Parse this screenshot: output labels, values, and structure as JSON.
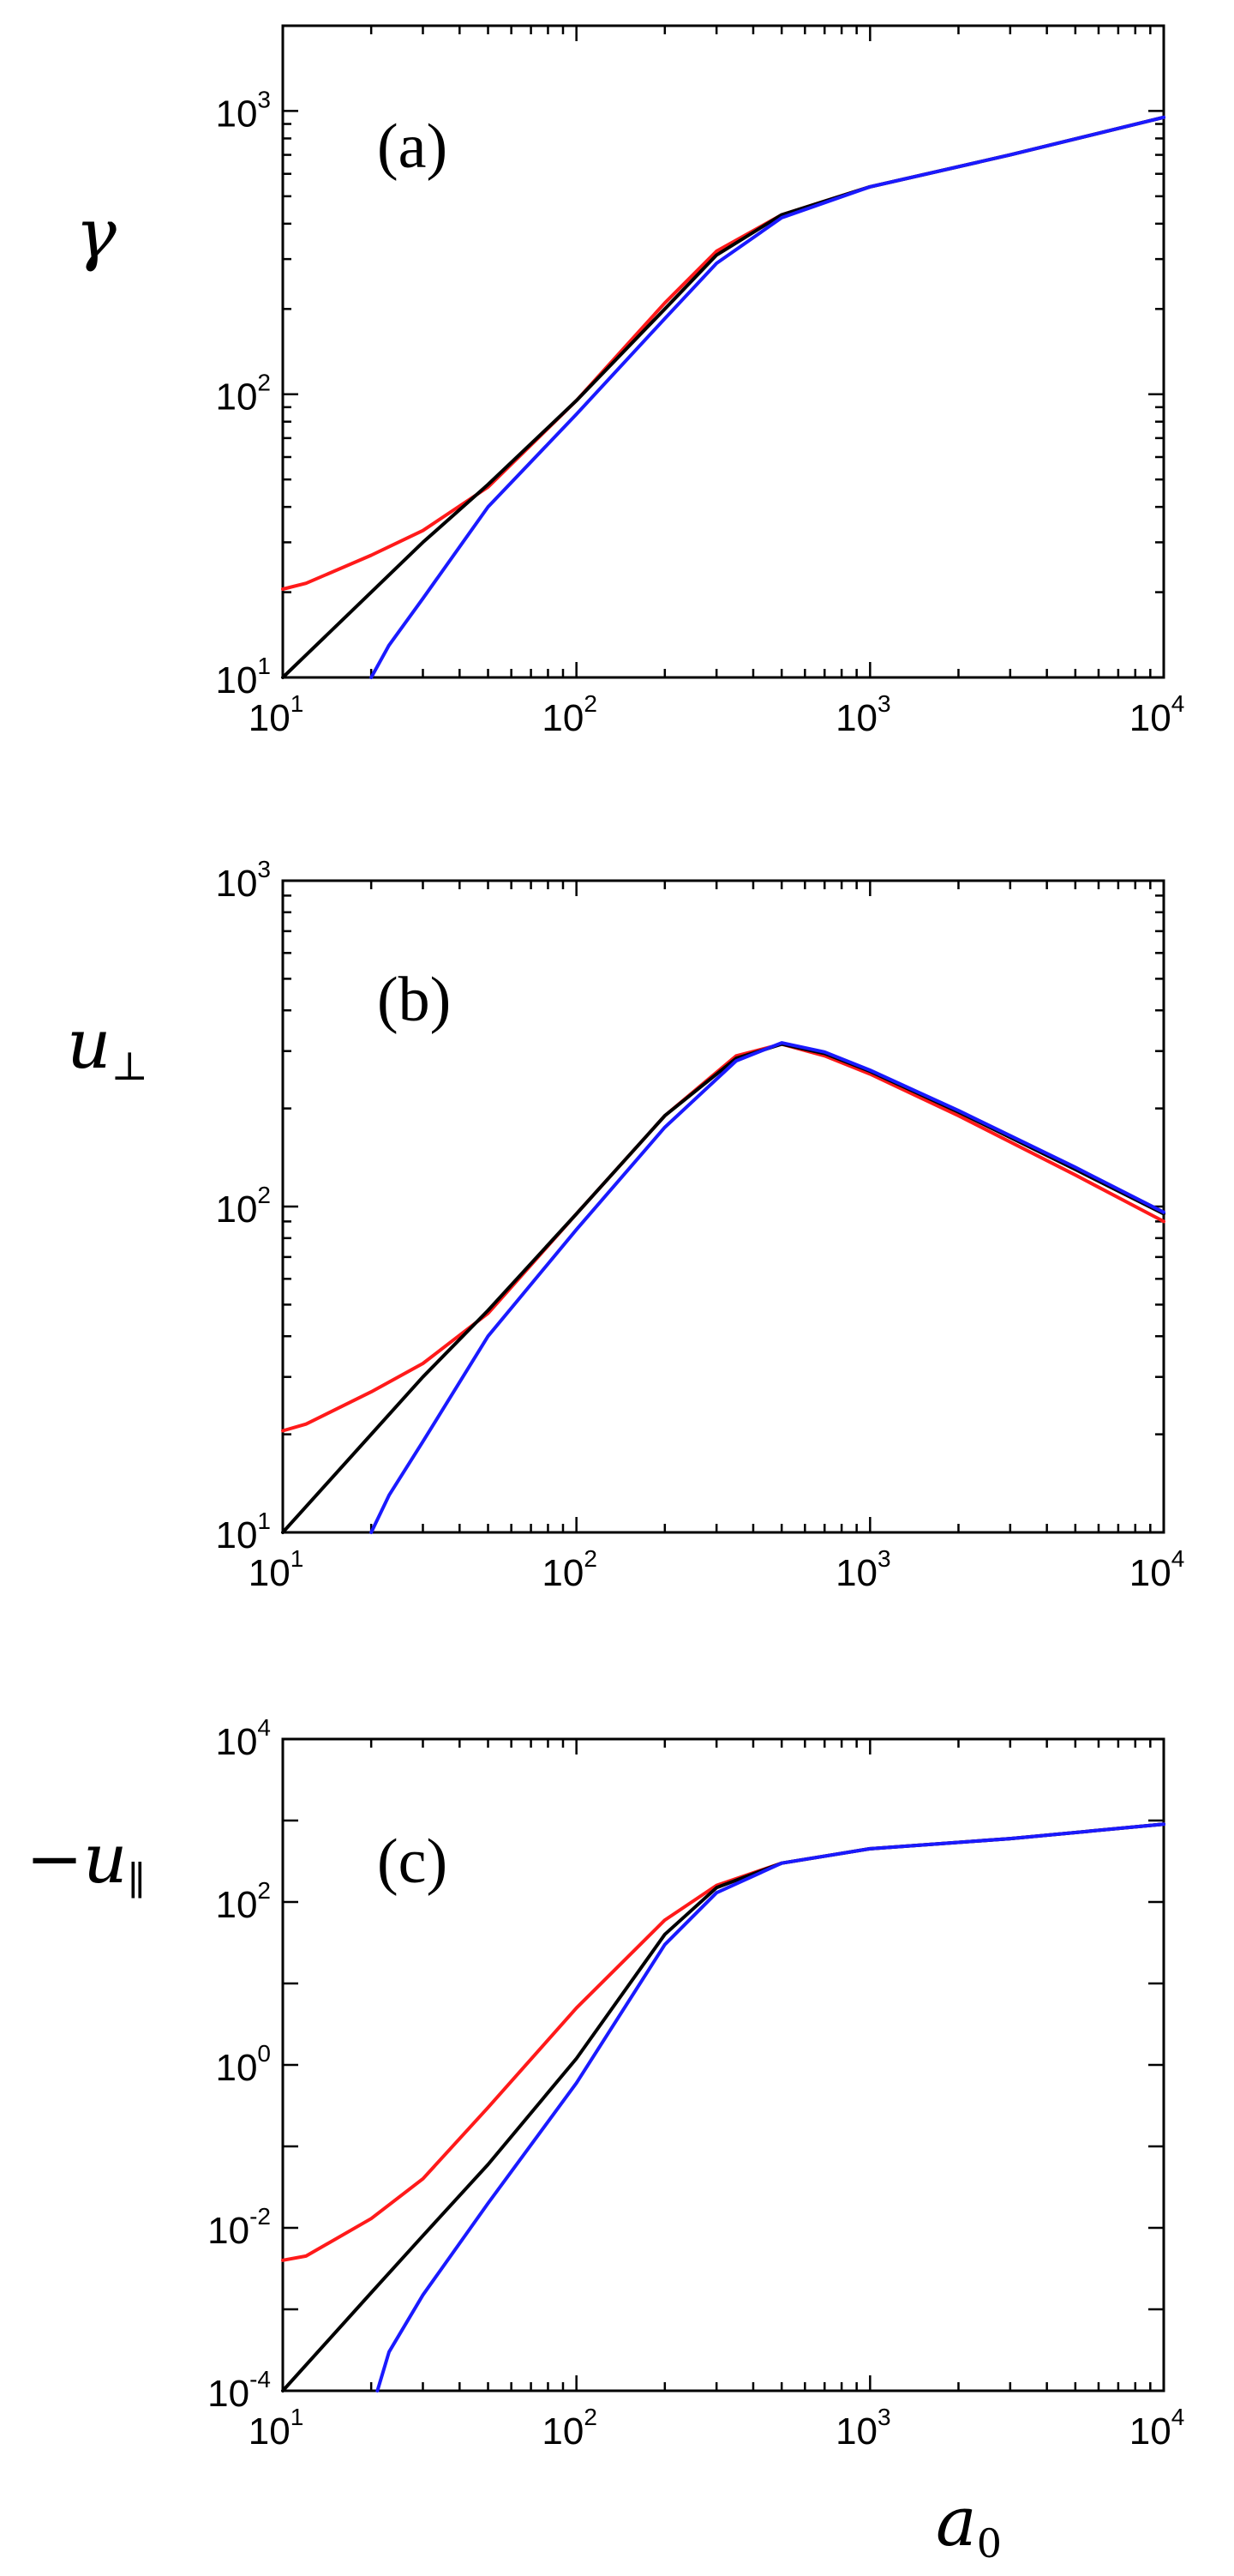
{
  "colors": {
    "red": "#ff1a1a",
    "black": "#000000",
    "blue": "#1a1aff"
  },
  "chart_data": [
    {
      "type": "line",
      "panel_label": "(a)",
      "ylabel": "γ",
      "xlabel": "",
      "xscale": "log",
      "yscale": "log",
      "xlim": [
        10,
        10000
      ],
      "ylim": [
        10,
        2000
      ],
      "xticks": [
        {
          "base": "10",
          "exp": "1"
        },
        {
          "base": "10",
          "exp": "2"
        },
        {
          "base": "10",
          "exp": "3"
        },
        {
          "base": "10",
          "exp": "4"
        }
      ],
      "yticks": [
        {
          "value": 10,
          "base": "10",
          "exp": "1"
        },
        {
          "value": 100,
          "base": "10",
          "exp": "2"
        },
        {
          "value": 1000,
          "base": "10",
          "exp": "3"
        }
      ],
      "grid": false,
      "series": [
        {
          "color": "red",
          "x": [
            10,
            12,
            20,
            30,
            50,
            100,
            200,
            300,
            500,
            1000,
            3000,
            10000
          ],
          "y": [
            20.5,
            21.5,
            27,
            33,
            47,
            95,
            210,
            320,
            430,
            540,
            700,
            950
          ]
        },
        {
          "color": "black",
          "x": [
            10,
            20,
            30,
            50,
            100,
            200,
            300,
            500,
            1000,
            3000,
            10000
          ],
          "y": [
            10,
            20,
            30,
            48,
            95,
            200,
            310,
            430,
            540,
            700,
            950
          ]
        },
        {
          "color": "blue",
          "x": [
            20,
            23,
            30,
            50,
            100,
            200,
            300,
            500,
            1000,
            3000,
            10000
          ],
          "y": [
            10,
            13,
            19,
            40,
            85,
            185,
            290,
            420,
            540,
            700,
            950
          ]
        }
      ]
    },
    {
      "type": "line",
      "panel_label": "(b)",
      "ylabel": "u",
      "ylabel_sub": "⊥",
      "xlabel": "",
      "xscale": "log",
      "yscale": "log",
      "xlim": [
        10,
        10000
      ],
      "ylim": [
        10,
        1000
      ],
      "xticks": [
        {
          "base": "10",
          "exp": "1"
        },
        {
          "base": "10",
          "exp": "2"
        },
        {
          "base": "10",
          "exp": "3"
        },
        {
          "base": "10",
          "exp": "4"
        }
      ],
      "yticks": [
        {
          "value": 10,
          "base": "10",
          "exp": "1"
        },
        {
          "value": 100,
          "base": "10",
          "exp": "2"
        },
        {
          "value": 1000,
          "base": "10",
          "exp": "3"
        }
      ],
      "grid": false,
      "series": [
        {
          "color": "red",
          "x": [
            10,
            12,
            20,
            30,
            50,
            100,
            200,
            350,
            500,
            700,
            1000,
            2000,
            5000,
            10000
          ],
          "y": [
            20.5,
            21.5,
            27,
            33,
            47,
            95,
            190,
            290,
            315,
            290,
            255,
            190,
            125,
            90
          ]
        },
        {
          "color": "black",
          "x": [
            10,
            20,
            30,
            50,
            100,
            200,
            350,
            500,
            700,
            1000,
            2000,
            5000,
            10000
          ],
          "y": [
            10,
            20,
            30,
            48,
            95,
            190,
            285,
            315,
            295,
            260,
            195,
            130,
            95
          ]
        },
        {
          "color": "blue",
          "x": [
            20,
            23,
            30,
            50,
            100,
            200,
            350,
            500,
            700,
            1000,
            2000,
            5000,
            10000
          ],
          "y": [
            10,
            13,
            19,
            40,
            85,
            175,
            280,
            318,
            298,
            262,
            197,
            132,
            96
          ]
        }
      ]
    },
    {
      "type": "line",
      "panel_label": "(c)",
      "ylabel": "−u",
      "ylabel_sub": "∥",
      "xlabel": "a",
      "xlabel_sub": "0",
      "xscale": "log",
      "yscale": "log",
      "xlim": [
        10,
        10000
      ],
      "ylim": [
        0.0001,
        10000
      ],
      "xticks": [
        {
          "base": "10",
          "exp": "1"
        },
        {
          "base": "10",
          "exp": "2"
        },
        {
          "base": "10",
          "exp": "3"
        },
        {
          "base": "10",
          "exp": "4"
        }
      ],
      "yticks": [
        {
          "value": 0.0001,
          "base": "10",
          "exp": "-4"
        },
        {
          "value": 0.01,
          "base": "10",
          "exp": "-2"
        },
        {
          "value": 1,
          "base": "10",
          "exp": "0"
        },
        {
          "value": 100,
          "base": "10",
          "exp": "2"
        },
        {
          "value": 10000,
          "base": "10",
          "exp": "4"
        }
      ],
      "grid": false,
      "series": [
        {
          "color": "red",
          "x": [
            10,
            12,
            20,
            30,
            50,
            100,
            200,
            300,
            500,
            1000,
            3000,
            10000
          ],
          "y": [
            0.004,
            0.0045,
            0.013,
            0.04,
            0.3,
            5,
            60,
            160,
            300,
            450,
            600,
            900
          ]
        },
        {
          "color": "black",
          "x": [
            10,
            20,
            30,
            50,
            100,
            200,
            300,
            500,
            1000,
            3000,
            10000
          ],
          "y": [
            0.0001,
            0.0016,
            0.008,
            0.06,
            1.2,
            40,
            150,
            300,
            450,
            600,
            900
          ]
        },
        {
          "color": "blue",
          "x": [
            21,
            23,
            30,
            50,
            100,
            200,
            300,
            500,
            1000,
            3000,
            10000
          ],
          "y": [
            0.0001,
            0.0003,
            0.0015,
            0.02,
            0.6,
            30,
            130,
            300,
            450,
            600,
            900
          ]
        }
      ]
    }
  ]
}
